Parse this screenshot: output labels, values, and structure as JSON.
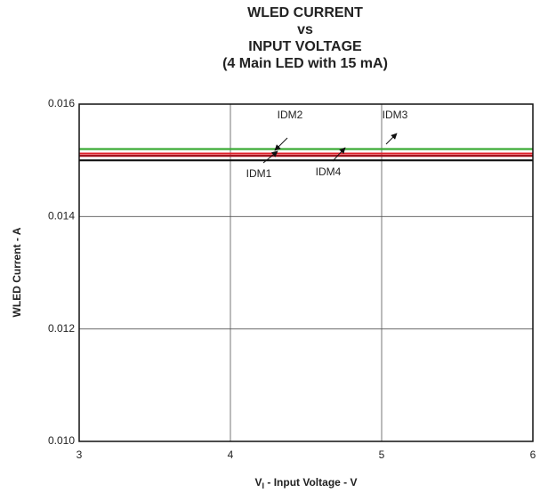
{
  "chart_data": {
    "type": "line",
    "title": [
      "WLED CURRENT",
      "vs",
      "INPUT VOLTAGE",
      "(4 Main LED with 15 mA)"
    ],
    "xlabel": [
      "V",
      "I",
      " - Input Voltage - V"
    ],
    "ylabel": "WLED Current - A",
    "x": [
      3,
      6
    ],
    "series": [
      {
        "name": "IDM3",
        "color": "#3aaa35",
        "values": [
          0.0152,
          0.0152
        ]
      },
      {
        "name": "IDM2",
        "color": "#e0202a",
        "values": [
          0.01512,
          0.01512
        ]
      },
      {
        "name": "IDM1",
        "color": "#a0141e",
        "values": [
          0.01508,
          0.01508
        ]
      },
      {
        "name": "IDM4",
        "color": "#111111",
        "values": [
          0.015,
          0.015
        ]
      }
    ],
    "xlim": [
      3,
      6
    ],
    "xticks": [
      3,
      4,
      5,
      6
    ],
    "ylim": [
      0.01,
      0.016
    ],
    "yticks": [
      {
        "value": 0.01,
        "label": "0.010"
      },
      0.012,
      0.014,
      0.016
    ],
    "grid": true
  }
}
